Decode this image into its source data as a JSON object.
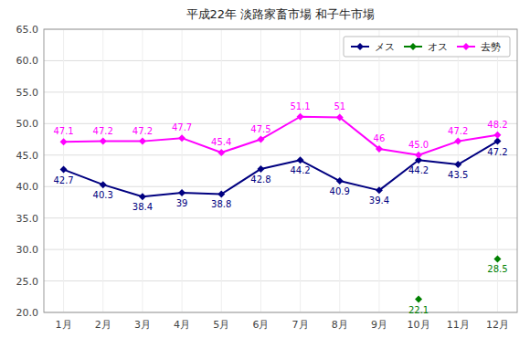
{
  "chart_data": {
    "type": "line",
    "title": "平成22年  淡路家畜市場  和子牛市場",
    "categories": [
      "1月",
      "2月",
      "3月",
      "4月",
      "5月",
      "6月",
      "7月",
      "8月",
      "9月",
      "10月",
      "11月",
      "12月"
    ],
    "series": [
      {
        "name": "メス",
        "color": "#000080",
        "marker": "diamond",
        "line_style": "solid",
        "values": [
          42.7,
          40.3,
          38.4,
          39.0,
          38.8,
          42.8,
          44.2,
          40.9,
          39.4,
          44.2,
          43.5,
          47.2
        ],
        "value_labels": [
          "42.7",
          "40.3",
          "38.4",
          "39",
          "38.8",
          "42.8",
          "44.2",
          "40.9",
          "39.4",
          "44.2",
          "43.5",
          "47.2"
        ]
      },
      {
        "name": "オス",
        "color": "#008000",
        "marker": "diamond",
        "line_style": "solid",
        "values": [
          null,
          null,
          null,
          null,
          null,
          null,
          null,
          null,
          null,
          22.1,
          null,
          28.5
        ],
        "value_labels": [
          null,
          null,
          null,
          null,
          null,
          null,
          null,
          null,
          null,
          "22.1",
          null,
          "28.5"
        ]
      },
      {
        "name": "去勢",
        "color": "#FF00FF",
        "marker": "diamond",
        "line_style": "solid",
        "values": [
          47.1,
          47.2,
          47.2,
          47.7,
          45.4,
          47.5,
          51.1,
          51.0,
          46.0,
          45.0,
          47.2,
          48.2
        ],
        "value_labels": [
          "47.1",
          "47.2",
          "47.2",
          "47.7",
          "45.4",
          "47.5",
          "51.1",
          "51",
          "46",
          "45.0",
          "47.2",
          "48.2"
        ]
      }
    ],
    "ylim": [
      20.0,
      65.0
    ],
    "yticks": [
      {
        "value": 20.0,
        "label": "20.0"
      },
      {
        "value": 25.0,
        "label": "25.0"
      },
      {
        "value": 30.0,
        "label": "30.0"
      },
      {
        "value": 35.0,
        "label": "35.0"
      },
      {
        "value": 40.0,
        "label": "40.0"
      },
      {
        "value": 45.0,
        "label": "45.0"
      },
      {
        "value": 50.0,
        "label": "50.0"
      },
      {
        "value": 55.0,
        "label": "55.0"
      },
      {
        "value": 60.0,
        "label": "60.0"
      },
      {
        "value": 65.0,
        "label": "65.0"
      }
    ],
    "grid": true,
    "legend": "upper right",
    "data_labels": true
  }
}
